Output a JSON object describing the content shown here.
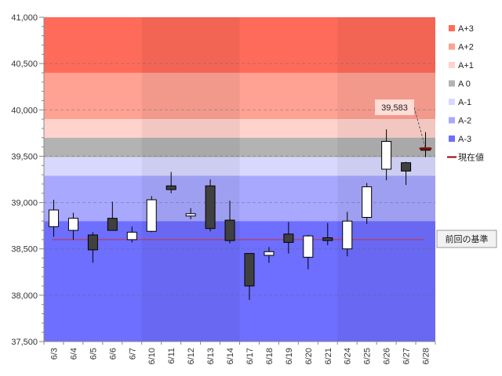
{
  "chart_data": {
    "type": "candlestick",
    "ylim": [
      37500,
      41000
    ],
    "ytick_step": 500,
    "ytick_labels": [
      "37,500",
      "38,000",
      "38,500",
      "39,000",
      "39,500",
      "40,000",
      "40,500",
      "41,000"
    ],
    "categories": [
      "6/3",
      "6/4",
      "6/5",
      "6/6",
      "6/7",
      "6/10",
      "6/11",
      "6/12",
      "6/13",
      "6/14",
      "6/17",
      "6/18",
      "6/19",
      "6/20",
      "6/21",
      "6/24",
      "6/25",
      "6/26",
      "6/27",
      "6/28"
    ],
    "candles": [
      {
        "date": "6/3",
        "open": 38740,
        "high": 39030,
        "low": 38630,
        "close": 38920
      },
      {
        "date": "6/4",
        "open": 38700,
        "high": 38890,
        "low": 38600,
        "close": 38830
      },
      {
        "date": "6/5",
        "open": 38650,
        "high": 38680,
        "low": 38350,
        "close": 38490
      },
      {
        "date": "6/6",
        "open": 38830,
        "high": 39010,
        "low": 38700,
        "close": 38700
      },
      {
        "date": "6/7",
        "open": 38600,
        "high": 38740,
        "low": 38570,
        "close": 38680
      },
      {
        "date": "6/10",
        "open": 38690,
        "high": 39070,
        "low": 38680,
        "close": 39030
      },
      {
        "date": "6/11",
        "open": 39180,
        "high": 39330,
        "low": 39100,
        "close": 39140
      },
      {
        "date": "6/12",
        "open": 38860,
        "high": 38940,
        "low": 38820,
        "close": 38880
      },
      {
        "date": "6/13",
        "open": 39180,
        "high": 39250,
        "low": 38690,
        "close": 38720
      },
      {
        "date": "6/14",
        "open": 38810,
        "high": 39020,
        "low": 38560,
        "close": 38590
      },
      {
        "date": "6/17",
        "open": 38450,
        "high": 38450,
        "low": 37950,
        "close": 38100
      },
      {
        "date": "6/18",
        "open": 38430,
        "high": 38520,
        "low": 38350,
        "close": 38470
      },
      {
        "date": "6/19",
        "open": 38660,
        "high": 38790,
        "low": 38450,
        "close": 38570
      },
      {
        "date": "6/20",
        "open": 38410,
        "high": 38650,
        "low": 38280,
        "close": 38640
      },
      {
        "date": "6/21",
        "open": 38620,
        "high": 38780,
        "low": 38540,
        "close": 38590
      },
      {
        "date": "6/24",
        "open": 38500,
        "high": 38900,
        "low": 38420,
        "close": 38800
      },
      {
        "date": "6/25",
        "open": 38840,
        "high": 39210,
        "low": 38770,
        "close": 39170
      },
      {
        "date": "6/26",
        "open": 39360,
        "high": 39790,
        "low": 39240,
        "close": 39660
      },
      {
        "date": "6/27",
        "open": 39430,
        "high": 39440,
        "low": 39190,
        "close": 39340
      },
      {
        "date": "6/28",
        "open": 39590,
        "high": 39760,
        "low": 39490,
        "close": 39583
      }
    ],
    "bands": [
      {
        "name": "A+3",
        "from": 40400,
        "to": 41000,
        "color": "#ff6b5a"
      },
      {
        "name": "A+2",
        "from": 39900,
        "to": 40400,
        "color": "#ffa294"
      },
      {
        "name": "A+1",
        "from": 39700,
        "to": 39900,
        "color": "#ffd2cc"
      },
      {
        "name": "A 0",
        "from": 39490,
        "to": 39700,
        "color": "#b3b3b3"
      },
      {
        "name": "A-1",
        "from": 39290,
        "to": 39490,
        "color": "#d8d8ff"
      },
      {
        "name": "A-2",
        "from": 38800,
        "to": 39290,
        "color": "#a8a8ff"
      },
      {
        "name": "A-3",
        "from": 37500,
        "to": 38800,
        "color": "#6e6eff"
      }
    ],
    "reference_line": {
      "value": 38600,
      "label": "前回の基準",
      "color": "#cc3333"
    },
    "current_value": {
      "value": 39583,
      "label": "39,583",
      "legend": "現在値",
      "color": "#990000"
    },
    "legend": [
      "A+3",
      "A+2",
      "A+1",
      "A 0",
      "A-1",
      "A-2",
      "A-3",
      "現在値"
    ],
    "legend_position": "right",
    "grid": true
  }
}
